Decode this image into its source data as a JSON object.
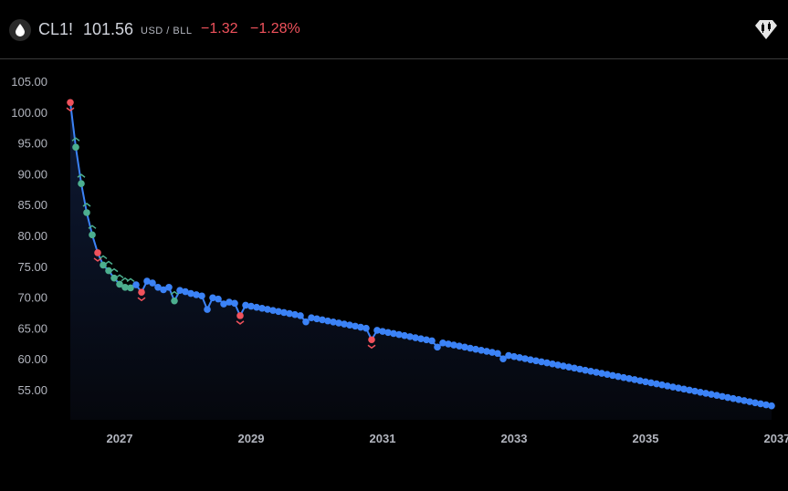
{
  "header": {
    "icon": "oil-drop-icon",
    "symbol": "CL1!",
    "price": "101.56",
    "unit": "USD / BLL",
    "change": "−1.32",
    "change_percent": "−1.28%",
    "badge_icon": "candlestick-diamond-icon"
  },
  "colors": {
    "line": "#3b82f6",
    "up": "#4caf8f",
    "down": "#f0525c",
    "neutral": "#3b82f6",
    "fill": "#0b1224",
    "change": "#f0525c"
  },
  "chart_data": {
    "type": "line",
    "title": "",
    "xlabel": "",
    "ylabel": "",
    "x_contract_months": {
      "first": "2026-04",
      "last": "2036-12",
      "frequency": "monthly"
    },
    "xlim": [
      2026.25,
      2037.15
    ],
    "ylim": [
      51,
      107
    ],
    "y_ticks": [
      "105.00",
      "100.00",
      "95.00",
      "90.00",
      "85.00",
      "80.00",
      "75.00",
      "70.00",
      "65.00",
      "60.00",
      "55.00"
    ],
    "x_ticks": [
      "2027",
      "2029",
      "2031",
      "2033",
      "2035",
      "2037"
    ],
    "grid": false,
    "legend": "none",
    "values": [
      101.56,
      94.3,
      88.4,
      83.7,
      80.1,
      77.2,
      75.2,
      74.3,
      73.1,
      72.1,
      71.6,
      71.5,
      72.0,
      70.8,
      72.6,
      72.3,
      71.6,
      71.2,
      71.6,
      69.4,
      71.1,
      70.9,
      70.6,
      70.4,
      70.2,
      68.0,
      69.9,
      69.7,
      68.9,
      69.2,
      69.0,
      67.0,
      68.7,
      68.53,
      68.36,
      68.19,
      68.02,
      67.85,
      67.68,
      67.51,
      67.34,
      67.17,
      67.0,
      66.0,
      66.66,
      66.49,
      66.32,
      66.15,
      65.98,
      65.81,
      65.64,
      65.47,
      65.3,
      65.13,
      64.96,
      63.1,
      64.62,
      64.45,
      64.28,
      64.11,
      63.94,
      63.77,
      63.6,
      63.43,
      63.26,
      63.09,
      62.92,
      61.9,
      62.58,
      62.41,
      62.24,
      62.07,
      61.9,
      61.73,
      61.56,
      61.39,
      61.22,
      61.05,
      60.88,
      60.0,
      60.54,
      60.37,
      60.2,
      60.03,
      59.86,
      59.69,
      59.52,
      59.35,
      59.18,
      59.01,
      58.84,
      58.67,
      58.5,
      58.33,
      58.16,
      57.99,
      57.82,
      57.65,
      57.48,
      57.31,
      57.14,
      56.97,
      56.8,
      56.63,
      56.46,
      56.29,
      56.12,
      55.95,
      55.78,
      55.61,
      55.44,
      55.27,
      55.1,
      54.93,
      54.76,
      54.59,
      54.42,
      54.25,
      54.08,
      53.91,
      53.74,
      53.57,
      53.4,
      53.23,
      53.06,
      52.89,
      52.72,
      52.55,
      52.38
    ],
    "markers": {
      "up": [
        1,
        2,
        3,
        4,
        6,
        7,
        8,
        9,
        10,
        11,
        19
      ],
      "down": [
        0,
        5,
        13,
        31,
        55
      ]
    }
  }
}
